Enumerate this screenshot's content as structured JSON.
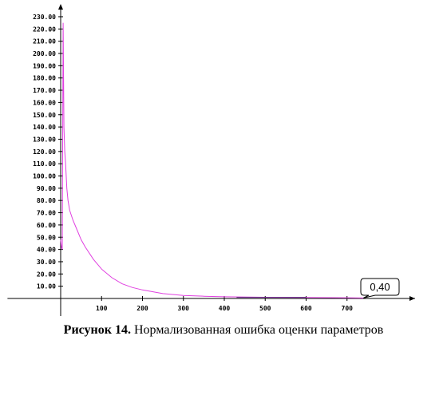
{
  "chart_data": {
    "type": "line",
    "title": "",
    "xlabel": "",
    "ylabel": "",
    "xlim": [
      -130,
      870
    ],
    "ylim": [
      -5,
      235
    ],
    "x_ticks": [
      100,
      200,
      300,
      400,
      500,
      600,
      700
    ],
    "y_ticks": [
      10,
      20,
      30,
      40,
      50,
      60,
      70,
      80,
      90,
      100,
      110,
      120,
      130,
      140,
      150,
      160,
      170,
      180,
      190,
      200,
      210,
      220,
      230
    ],
    "x_tick_labels": [
      "100",
      "200",
      "300",
      "400",
      "500",
      "600",
      "700"
    ],
    "y_tick_labels": [
      "10.00",
      "20.00",
      "30.00",
      "40.00",
      "50.00",
      "60.00",
      "70.00",
      "80.00",
      "90.00",
      "100.00",
      "110.00",
      "120.00",
      "130.00",
      "140.00",
      "150.00",
      "160.00",
      "170.00",
      "180.00",
      "190.00",
      "200.00",
      "210.00",
      "220.00",
      "230.00"
    ],
    "grid": false,
    "series": [
      {
        "color": "#e040e0",
        "x": [
          0,
          2,
          4,
          6,
          8,
          10,
          12,
          15,
          18,
          22,
          26,
          30,
          40,
          50,
          60,
          80,
          100,
          125,
          150,
          175,
          200,
          250,
          300,
          350,
          400,
          500,
          600,
          700,
          740
        ],
        "y": [
          48,
          42,
          40,
          225,
          140,
          120,
          110,
          90,
          80,
          72,
          68,
          64,
          56,
          48,
          42,
          32,
          24,
          17,
          12,
          9,
          7,
          4,
          2.5,
          1.8,
          1.4,
          1.0,
          0.8,
          0.6,
          0.4
        ]
      }
    ],
    "annotations": [
      {
        "text": "0,40",
        "x": 740,
        "y": 0.4
      }
    ]
  },
  "caption": {
    "label": "Рисунок 14.",
    "text": " Нормализованная ошибка оценки параметров"
  }
}
